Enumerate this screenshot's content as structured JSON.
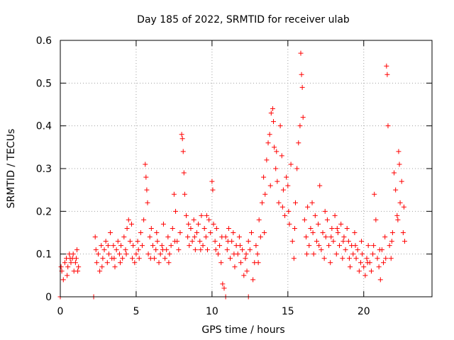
{
  "chart_data": {
    "type": "scatter",
    "title": "Day 185 of 2022, SRMTID for receiver ulab",
    "xlabel": "GPS time / hours",
    "ylabel": "SRMTID / TECUs",
    "xlim": [
      0,
      24.5
    ],
    "ylim": [
      0,
      0.6
    ],
    "xticks": [
      0,
      5,
      10,
      15,
      20
    ],
    "yticks": [
      0,
      0.1,
      0.2,
      0.3,
      0.4,
      0.5,
      0.6
    ],
    "xtick_labels": [
      "0",
      "5",
      "10",
      "15",
      "20"
    ],
    "ytick_labels": [
      "0",
      "0.1",
      "0.2",
      "0.3",
      "0.4",
      "0.5",
      "0.6"
    ],
    "grid": true,
    "marker": "+",
    "color": "#ff0000",
    "series": [
      {
        "name": "SRMTID",
        "points": [
          [
            0.0,
            0.0
          ],
          [
            0.05,
            0.07
          ],
          [
            0.1,
            0.06
          ],
          [
            0.2,
            0.04
          ],
          [
            0.3,
            0.08
          ],
          [
            0.4,
            0.09
          ],
          [
            0.5,
            0.07
          ],
          [
            0.6,
            0.1
          ],
          [
            0.7,
            0.08
          ],
          [
            0.8,
            0.09
          ],
          [
            0.9,
            0.06
          ],
          [
            1.0,
            0.08
          ],
          [
            1.1,
            0.11
          ],
          [
            1.2,
            0.07
          ],
          [
            0.45,
            0.05
          ],
          [
            0.65,
            0.09
          ],
          [
            0.85,
            0.1
          ],
          [
            1.05,
            0.09
          ],
          [
            1.15,
            0.06
          ],
          [
            2.2,
            0.0
          ],
          [
            12.4,
            0.0
          ],
          [
            10.9,
            0.0
          ],
          [
            2.3,
            0.14
          ],
          [
            2.4,
            0.08
          ],
          [
            2.5,
            0.1
          ],
          [
            2.6,
            0.06
          ],
          [
            2.7,
            0.12
          ],
          [
            2.8,
            0.09
          ],
          [
            2.9,
            0.11
          ],
          [
            3.0,
            0.13
          ],
          [
            3.1,
            0.08
          ],
          [
            3.2,
            0.1
          ],
          [
            3.3,
            0.15
          ],
          [
            3.4,
            0.09
          ],
          [
            3.5,
            0.12
          ],
          [
            3.6,
            0.07
          ],
          [
            3.7,
            0.11
          ],
          [
            3.8,
            0.13
          ],
          [
            3.9,
            0.1
          ],
          [
            4.0,
            0.12
          ],
          [
            4.1,
            0.09
          ],
          [
            4.2,
            0.14
          ],
          [
            4.3,
            0.11
          ],
          [
            4.4,
            0.16
          ],
          [
            4.5,
            0.18
          ],
          [
            4.6,
            0.13
          ],
          [
            4.7,
            0.17
          ],
          [
            4.8,
            0.12
          ],
          [
            4.9,
            0.08
          ],
          [
            5.0,
            0.1
          ],
          [
            5.1,
            0.13
          ],
          [
            5.2,
            0.09
          ],
          [
            5.3,
            0.15
          ],
          [
            5.4,
            0.12
          ],
          [
            5.5,
            0.18
          ],
          [
            5.6,
            0.31
          ],
          [
            5.65,
            0.28
          ],
          [
            5.7,
            0.25
          ],
          [
            5.75,
            0.22
          ],
          [
            5.8,
            0.1
          ],
          [
            5.9,
            0.14
          ],
          [
            6.0,
            0.16
          ],
          [
            6.1,
            0.12
          ],
          [
            6.2,
            0.09
          ],
          [
            6.3,
            0.11
          ],
          [
            6.4,
            0.13
          ],
          [
            6.5,
            0.08
          ],
          [
            6.6,
            0.1
          ],
          [
            6.7,
            0.12
          ],
          [
            6.8,
            0.17
          ],
          [
            6.9,
            0.09
          ],
          [
            7.0,
            0.11
          ],
          [
            7.1,
            0.14
          ],
          [
            7.2,
            0.1
          ],
          [
            7.3,
            0.12
          ],
          [
            7.4,
            0.16
          ],
          [
            7.5,
            0.24
          ],
          [
            7.6,
            0.2
          ],
          [
            7.7,
            0.13
          ],
          [
            7.8,
            0.11
          ],
          [
            7.9,
            0.15
          ],
          [
            8.0,
            0.38
          ],
          [
            8.05,
            0.37
          ],
          [
            8.1,
            0.34
          ],
          [
            8.15,
            0.29
          ],
          [
            8.2,
            0.24
          ],
          [
            8.3,
            0.19
          ],
          [
            8.4,
            0.14
          ],
          [
            8.5,
            0.12
          ],
          [
            8.6,
            0.16
          ],
          [
            8.7,
            0.13
          ],
          [
            8.8,
            0.18
          ],
          [
            8.9,
            0.11
          ],
          [
            9.0,
            0.15
          ],
          [
            9.1,
            0.17
          ],
          [
            9.2,
            0.13
          ],
          [
            9.3,
            0.19
          ],
          [
            9.4,
            0.12
          ],
          [
            9.5,
            0.16
          ],
          [
            9.6,
            0.14
          ],
          [
            9.7,
            0.11
          ],
          [
            9.8,
            0.18
          ],
          [
            9.9,
            0.15
          ],
          [
            10.0,
            0.27
          ],
          [
            10.05,
            0.25
          ],
          [
            10.1,
            0.17
          ],
          [
            10.2,
            0.13
          ],
          [
            10.3,
            0.16
          ],
          [
            10.4,
            0.1
          ],
          [
            10.5,
            0.12
          ],
          [
            10.6,
            0.08
          ],
          [
            10.7,
            0.03
          ],
          [
            10.8,
            0.02
          ],
          [
            10.9,
            0.14
          ],
          [
            11.0,
            0.11
          ],
          [
            11.1,
            0.16
          ],
          [
            11.2,
            0.09
          ],
          [
            11.3,
            0.13
          ],
          [
            11.4,
            0.15
          ],
          [
            11.5,
            0.07
          ],
          [
            11.6,
            0.12
          ],
          [
            11.7,
            0.1
          ],
          [
            11.8,
            0.14
          ],
          [
            11.9,
            0.08
          ],
          [
            12.0,
            0.11
          ],
          [
            12.1,
            0.05
          ],
          [
            12.2,
            0.09
          ],
          [
            12.3,
            0.06
          ],
          [
            12.4,
            0.13
          ],
          [
            12.5,
            0.11
          ],
          [
            12.6,
            0.15
          ],
          [
            12.7,
            0.04
          ],
          [
            12.8,
            0.08
          ],
          [
            12.9,
            0.12
          ],
          [
            13.0,
            0.1
          ],
          [
            13.1,
            0.18
          ],
          [
            13.2,
            0.14
          ],
          [
            13.3,
            0.22
          ],
          [
            13.4,
            0.28
          ],
          [
            13.5,
            0.24
          ],
          [
            13.6,
            0.32
          ],
          [
            13.7,
            0.36
          ],
          [
            13.8,
            0.38
          ],
          [
            13.9,
            0.43
          ],
          [
            14.0,
            0.44
          ],
          [
            14.05,
            0.41
          ],
          [
            14.1,
            0.35
          ],
          [
            14.2,
            0.3
          ],
          [
            14.3,
            0.27
          ],
          [
            14.4,
            0.22
          ],
          [
            14.5,
            0.4
          ],
          [
            14.6,
            0.33
          ],
          [
            14.7,
            0.25
          ],
          [
            14.8,
            0.19
          ],
          [
            14.9,
            0.28
          ],
          [
            15.0,
            0.26
          ],
          [
            15.1,
            0.17
          ],
          [
            15.2,
            0.31
          ],
          [
            15.3,
            0.13
          ],
          [
            15.4,
            0.09
          ],
          [
            15.5,
            0.22
          ],
          [
            15.6,
            0.3
          ],
          [
            15.7,
            0.36
          ],
          [
            15.8,
            0.4
          ],
          [
            15.85,
            0.57
          ],
          [
            15.9,
            0.52
          ],
          [
            15.95,
            0.49
          ],
          [
            16.0,
            0.42
          ],
          [
            16.1,
            0.18
          ],
          [
            16.2,
            0.14
          ],
          [
            16.3,
            0.21
          ],
          [
            16.4,
            0.12
          ],
          [
            16.5,
            0.16
          ],
          [
            16.6,
            0.22
          ],
          [
            16.7,
            0.1
          ],
          [
            16.8,
            0.19
          ],
          [
            16.9,
            0.13
          ],
          [
            17.0,
            0.17
          ],
          [
            17.1,
            0.26
          ],
          [
            17.2,
            0.11
          ],
          [
            17.3,
            0.15
          ],
          [
            17.4,
            0.09
          ],
          [
            17.5,
            0.14
          ],
          [
            17.6,
            0.18
          ],
          [
            17.7,
            0.12
          ],
          [
            17.8,
            0.08
          ],
          [
            17.9,
            0.16
          ],
          [
            18.0,
            0.13
          ],
          [
            18.1,
            0.19
          ],
          [
            18.2,
            0.1
          ],
          [
            18.3,
            0.15
          ],
          [
            18.4,
            0.12
          ],
          [
            18.5,
            0.17
          ],
          [
            18.6,
            0.09
          ],
          [
            18.7,
            0.14
          ],
          [
            18.8,
            0.11
          ],
          [
            18.9,
            0.16
          ],
          [
            19.0,
            0.13
          ],
          [
            19.1,
            0.07
          ],
          [
            19.2,
            0.12
          ],
          [
            19.3,
            0.1
          ],
          [
            19.4,
            0.15
          ],
          [
            19.5,
            0.09
          ],
          [
            19.6,
            0.11
          ],
          [
            19.7,
            0.06
          ],
          [
            19.8,
            0.08
          ],
          [
            19.9,
            0.1
          ],
          [
            20.0,
            0.07
          ],
          [
            20.1,
            0.05
          ],
          [
            20.2,
            0.09
          ],
          [
            20.3,
            0.12
          ],
          [
            20.4,
            0.08
          ],
          [
            20.5,
            0.06
          ],
          [
            20.6,
            0.1
          ],
          [
            20.7,
            0.24
          ],
          [
            20.8,
            0.18
          ],
          [
            20.9,
            0.09
          ],
          [
            21.0,
            0.07
          ],
          [
            21.1,
            0.04
          ],
          [
            21.2,
            0.11
          ],
          [
            21.3,
            0.08
          ],
          [
            21.4,
            0.14
          ],
          [
            21.5,
            0.54
          ],
          [
            21.55,
            0.52
          ],
          [
            21.6,
            0.4
          ],
          [
            21.7,
            0.12
          ],
          [
            21.8,
            0.09
          ],
          [
            21.9,
            0.15
          ],
          [
            22.0,
            0.29
          ],
          [
            22.1,
            0.25
          ],
          [
            22.2,
            0.19
          ],
          [
            22.3,
            0.34
          ],
          [
            22.35,
            0.31
          ],
          [
            22.4,
            0.22
          ],
          [
            22.5,
            0.27
          ],
          [
            22.6,
            0.15
          ],
          [
            22.7,
            0.13
          ],
          [
            2.35,
            0.11
          ],
          [
            2.75,
            0.07
          ],
          [
            3.15,
            0.12
          ],
          [
            3.55,
            0.09
          ],
          [
            3.95,
            0.08
          ],
          [
            4.35,
            0.1
          ],
          [
            4.75,
            0.09
          ],
          [
            5.15,
            0.11
          ],
          [
            5.95,
            0.09
          ],
          [
            6.35,
            0.15
          ],
          [
            6.75,
            0.11
          ],
          [
            7.15,
            0.08
          ],
          [
            7.55,
            0.13
          ],
          [
            8.45,
            0.17
          ],
          [
            8.85,
            0.14
          ],
          [
            9.25,
            0.11
          ],
          [
            9.65,
            0.19
          ],
          [
            10.25,
            0.11
          ],
          [
            10.65,
            0.14
          ],
          [
            11.05,
            0.13
          ],
          [
            11.45,
            0.1
          ],
          [
            11.85,
            0.12
          ],
          [
            12.25,
            0.1
          ],
          [
            13.05,
            0.08
          ],
          [
            13.45,
            0.15
          ],
          [
            13.85,
            0.26
          ],
          [
            14.25,
            0.34
          ],
          [
            14.65,
            0.21
          ],
          [
            15.05,
            0.2
          ],
          [
            15.45,
            0.16
          ],
          [
            16.25,
            0.1
          ],
          [
            16.65,
            0.15
          ],
          [
            17.05,
            0.12
          ],
          [
            17.45,
            0.2
          ],
          [
            17.85,
            0.14
          ],
          [
            18.25,
            0.16
          ],
          [
            18.65,
            0.13
          ],
          [
            19.05,
            0.09
          ],
          [
            19.45,
            0.12
          ],
          [
            19.85,
            0.13
          ],
          [
            20.25,
            0.08
          ],
          [
            20.65,
            0.12
          ],
          [
            21.05,
            0.11
          ],
          [
            21.45,
            0.09
          ],
          [
            21.85,
            0.13
          ],
          [
            22.25,
            0.18
          ],
          [
            22.65,
            0.21
          ]
        ]
      }
    ]
  }
}
